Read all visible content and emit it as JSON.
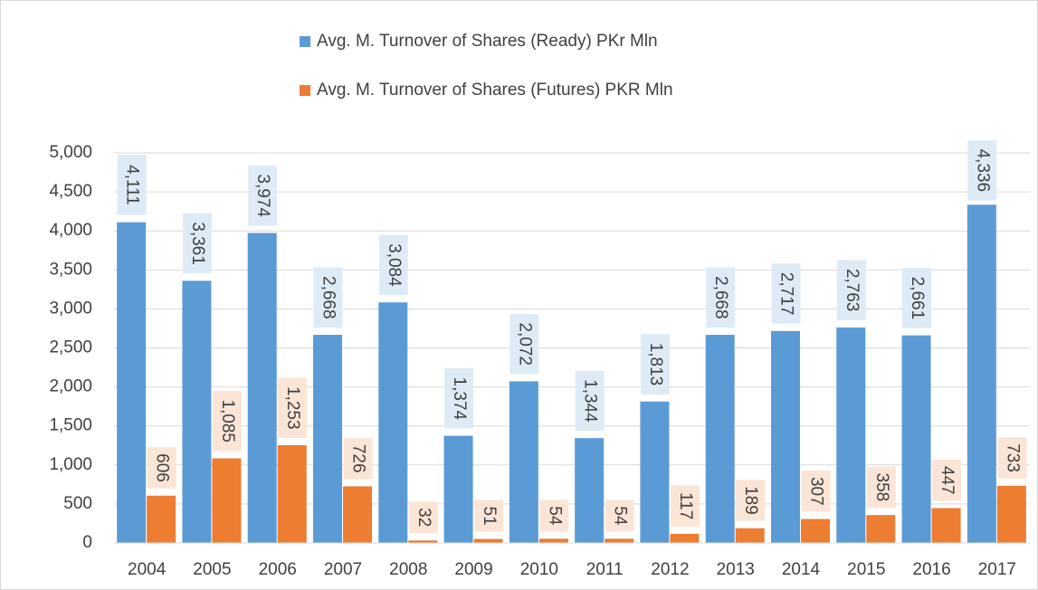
{
  "chart_data": {
    "type": "bar",
    "categories": [
      "2004",
      "2005",
      "2006",
      "2007",
      "2008",
      "2009",
      "2010",
      "2011",
      "2012",
      "2013",
      "2014",
      "2015",
      "2016",
      "2017"
    ],
    "series": [
      {
        "name": "Avg. M. Turnover of Shares (Ready) PKr Mln",
        "color": "#5b9bd5",
        "label_bg": "#deebf7",
        "values": [
          4111,
          3361,
          3974,
          2668,
          3084,
          1374,
          2072,
          1344,
          1813,
          2668,
          2717,
          2763,
          2661,
          4336
        ],
        "value_labels": [
          "4,111",
          "3,361",
          "3,974",
          "2,668",
          "3,084",
          "1,374",
          "2,072",
          "1,344",
          "1,813",
          "2,668",
          "2,717",
          "2,763",
          "2,661",
          "4,336"
        ]
      },
      {
        "name": "Avg. M. Turnover of Shares (Futures) PKR Mln",
        "color": "#ed7d31",
        "label_bg": "#fbe5d6",
        "values": [
          606,
          1085,
          1253,
          726,
          32,
          51,
          54,
          54,
          117,
          189,
          307,
          358,
          447,
          733
        ],
        "value_labels": [
          "606",
          "1,085",
          "1,253",
          "726",
          "32",
          "51",
          "54",
          "54",
          "117",
          "189",
          "307",
          "358",
          "447",
          "733"
        ]
      }
    ],
    "ylim": [
      0,
      5000
    ],
    "yticks": [
      0,
      500,
      {
        "value": 1000,
        "label": "1,000"
      },
      {
        "value": 1500,
        "label": "1,500"
      },
      {
        "value": 2000,
        "label": "2,000"
      },
      {
        "value": 2500,
        "label": "2,500"
      },
      {
        "value": 3000,
        "label": "3,000"
      },
      {
        "value": 3500,
        "label": "3,500"
      },
      {
        "value": 4000,
        "label": "4,000"
      },
      {
        "value": 4500,
        "label": "4,500"
      },
      {
        "value": 5000,
        "label": "5,000"
      }
    ],
    "grid": true,
    "legend": "top"
  }
}
